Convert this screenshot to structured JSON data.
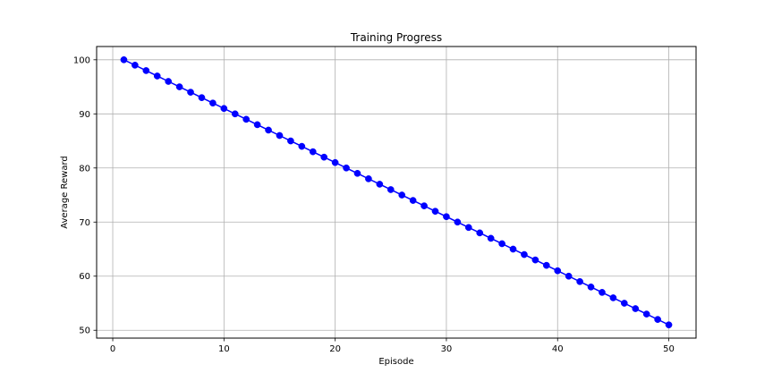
{
  "chart_data": {
    "type": "line",
    "title": "Training Progress",
    "xlabel": "Episode",
    "ylabel": "Average Reward",
    "xlim": [
      -1.45,
      52.45
    ],
    "ylim": [
      48.55,
      102.45
    ],
    "x_ticks": [
      0,
      10,
      20,
      30,
      40,
      50
    ],
    "y_ticks": [
      50,
      60,
      70,
      80,
      90,
      100
    ],
    "grid": true,
    "series": [
      {
        "name": "Average Reward",
        "color": "#0000ff",
        "marker": "circle",
        "x": [
          1,
          2,
          3,
          4,
          5,
          6,
          7,
          8,
          9,
          10,
          11,
          12,
          13,
          14,
          15,
          16,
          17,
          18,
          19,
          20,
          21,
          22,
          23,
          24,
          25,
          26,
          27,
          28,
          29,
          30,
          31,
          32,
          33,
          34,
          35,
          36,
          37,
          38,
          39,
          40,
          41,
          42,
          43,
          44,
          45,
          46,
          47,
          48,
          49,
          50
        ],
        "values": [
          100,
          99,
          98,
          97,
          96,
          95,
          94,
          93,
          92,
          91,
          90,
          89,
          88,
          87,
          86,
          85,
          84,
          83,
          82,
          81,
          80,
          79,
          78,
          77,
          76,
          75,
          74,
          73,
          72,
          71,
          70,
          69,
          68,
          67,
          66,
          65,
          64,
          63,
          62,
          61,
          60,
          59,
          58,
          57,
          56,
          55,
          54,
          53,
          52,
          51
        ]
      }
    ]
  }
}
